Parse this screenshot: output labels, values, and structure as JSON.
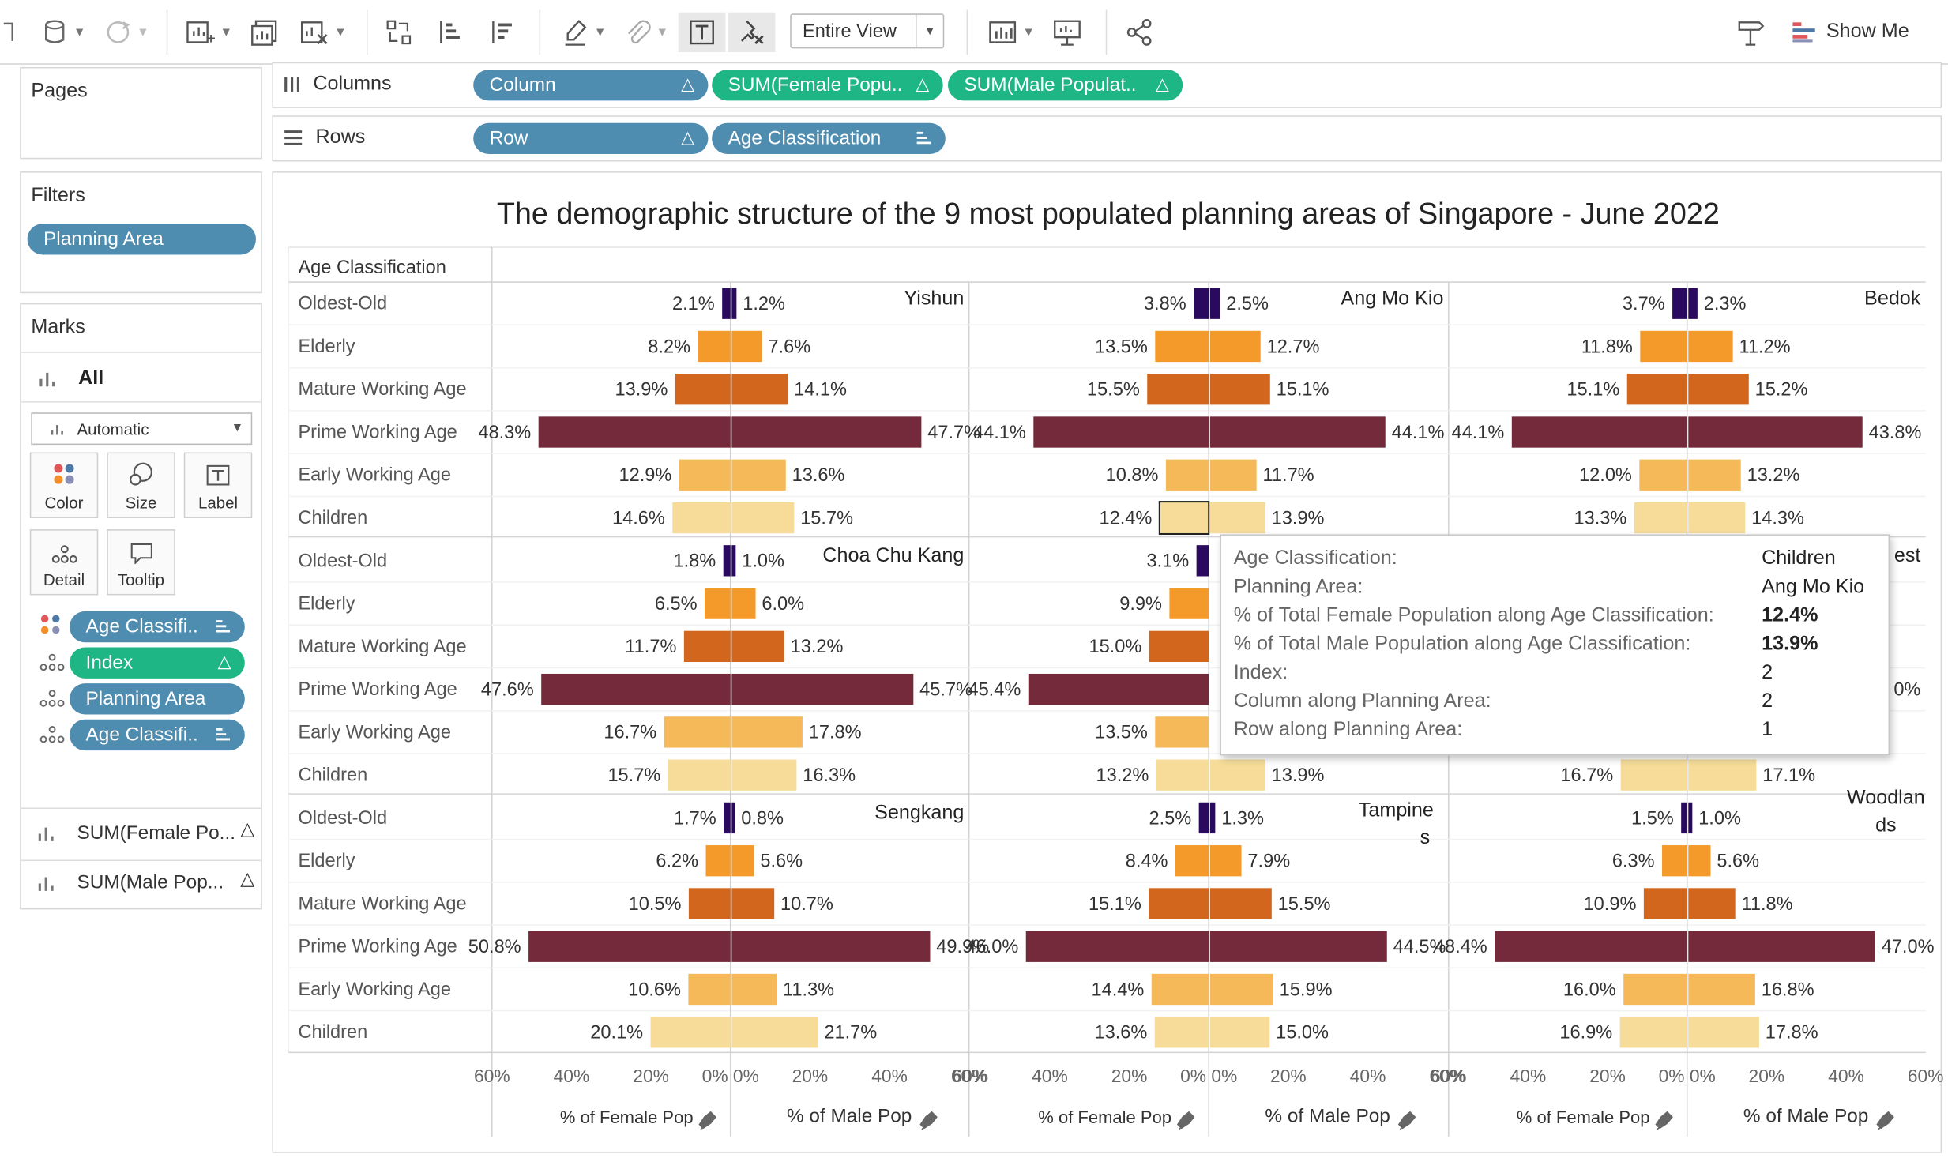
{
  "toolbar": {
    "view_select": "Entire View",
    "show_me": "Show Me"
  },
  "pages": {
    "title": "Pages"
  },
  "filters": {
    "title": "Filters",
    "pill": "Planning Area"
  },
  "marks": {
    "title": "Marks",
    "all": "All",
    "mark_type": "Automatic",
    "buttons": [
      "Color",
      "Size",
      "Label",
      "Detail",
      "Tooltip"
    ],
    "pills": [
      "Age Classifi..",
      "Index",
      "Planning Area",
      "Age Classifi.."
    ],
    "measures": [
      "SUM(Female Po...",
      "SUM(Male Pop..."
    ]
  },
  "shelves": {
    "columns_label": "Columns",
    "rows_label": "Rows",
    "columns": [
      "Column",
      "SUM(Female Popu..",
      "SUM(Male Populat.."
    ],
    "rows": [
      "Row",
      "Age Classification"
    ]
  },
  "chart_data": {
    "type": "bar",
    "title": "The demographic structure of the 9 most populated planning areas of Singapore - June 2022",
    "row_header": "Age Classification",
    "categories": [
      "Oldest-Old",
      "Elderly",
      "Mature Working Age",
      "Prime Working Age",
      "Early Working Age",
      "Children"
    ],
    "xlabel_left": "% of Female Pop",
    "xlabel_right": "% of Male Pop",
    "ticks_left": [
      "60%",
      "40%",
      "20%",
      "0%"
    ],
    "ticks_right": [
      "0%",
      "20%",
      "40%",
      "60%"
    ],
    "xlim": [
      0,
      60
    ],
    "colors": [
      "#2a0a5e",
      "#f39a2b",
      "#d2661d",
      "#742a3a",
      "#f5b95a",
      "#f6dc98"
    ],
    "panels": [
      {
        "area": "Yishun",
        "female": [
          2.1,
          8.2,
          13.9,
          48.3,
          12.9,
          14.6
        ],
        "male": [
          1.2,
          7.6,
          14.1,
          47.7,
          13.6,
          15.7
        ]
      },
      {
        "area": "Ang Mo Kio",
        "female": [
          3.8,
          13.5,
          15.5,
          44.1,
          10.8,
          12.4
        ],
        "male": [
          2.5,
          12.7,
          15.1,
          44.1,
          11.7,
          13.9
        ]
      },
      {
        "area": "Bedok",
        "female": [
          3.7,
          11.8,
          15.1,
          44.1,
          12.0,
          13.3
        ],
        "male": [
          2.3,
          11.2,
          15.2,
          43.8,
          13.2,
          14.3
        ]
      },
      {
        "area": "Choa Chu Kang",
        "female": [
          1.8,
          6.5,
          11.7,
          47.6,
          16.7,
          15.7
        ],
        "male": [
          1.0,
          6.0,
          13.2,
          45.7,
          17.8,
          16.3
        ]
      },
      {
        "area": "",
        "female": [
          3.1,
          9.9,
          15.0,
          45.4,
          13.5,
          13.2
        ],
        "male": [
          null,
          null,
          null,
          null,
          null,
          13.9
        ]
      },
      {
        "area": "est",
        "female": [
          null,
          null,
          null,
          null,
          null,
          16.7
        ],
        "male": [
          null,
          null,
          null,
          "0%",
          null,
          17.1
        ]
      },
      {
        "area": "Sengkang",
        "female": [
          1.7,
          6.2,
          10.5,
          50.8,
          10.6,
          20.1
        ],
        "male": [
          0.8,
          5.6,
          10.7,
          49.9,
          11.3,
          21.7
        ]
      },
      {
        "area": "Tampines",
        "female": [
          2.5,
          8.4,
          15.1,
          46.0,
          14.4,
          13.6
        ],
        "male": [
          1.3,
          7.9,
          15.5,
          44.5,
          15.9,
          15.0
        ]
      },
      {
        "area": "Woodlands",
        "female": [
          1.5,
          6.3,
          10.9,
          48.4,
          16.0,
          16.9
        ],
        "male": [
          1.0,
          5.6,
          11.8,
          47.0,
          16.8,
          17.8
        ]
      }
    ]
  },
  "tooltip": {
    "rows": [
      {
        "k": "Age Classification:",
        "v": "Children",
        "bold": false
      },
      {
        "k": "Planning Area:",
        "v": "Ang Mo Kio",
        "bold": false
      },
      {
        "k": "% of Total Female Population along Age Classification:",
        "v": "12.4%",
        "bold": true
      },
      {
        "k": "% of Total Male Population along Age Classification:",
        "v": "13.9%",
        "bold": true
      },
      {
        "k": "Index:",
        "v": "2",
        "bold": false
      },
      {
        "k": "Column along Planning Area:",
        "v": "2",
        "bold": false
      },
      {
        "k": "Row along Planning Area:",
        "v": "1",
        "bold": false
      }
    ]
  }
}
